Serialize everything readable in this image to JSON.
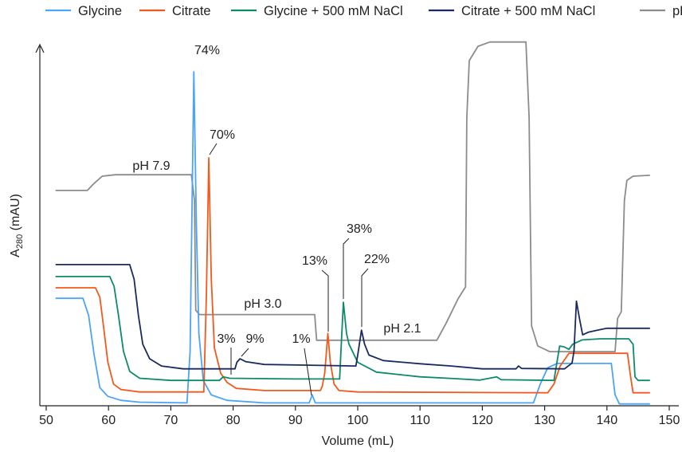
{
  "chart_data": {
    "type": "line",
    "title": "",
    "xlabel": "Volume (mL)",
    "ylabel_main": "A",
    "ylabel_sub": "280",
    "ylabel_unit": " (mAU)",
    "xlim": [
      50,
      150
    ],
    "x_ticks": [
      "50",
      "60",
      "70",
      "80",
      "90",
      "100",
      "110",
      "120",
      "130",
      "140",
      "150"
    ],
    "y_axis_ticks": "none",
    "y_units_note": "A280 shown on relative scale (no tick labels printed)",
    "ylim_relative": [
      0,
      100
    ],
    "ph_range": [
      0,
      12.6
    ],
    "grid": false,
    "legend_placement": "top",
    "series": [
      {
        "name": "Glycine",
        "color": "#4da3f5",
        "axis": "A280",
        "points": [
          [
            51.5,
            29.7
          ],
          [
            55.9,
            29.7
          ],
          [
            56.8,
            25
          ],
          [
            57.7,
            14
          ],
          [
            58.6,
            5
          ],
          [
            59.9,
            2.6
          ],
          [
            62,
            1.5
          ],
          [
            65,
            1
          ],
          [
            72.6,
            0.8
          ],
          [
            73.1,
            15
          ],
          [
            73.7,
            92.3
          ],
          [
            74.1,
            50
          ],
          [
            74.5,
            20
          ],
          [
            75.2,
            7
          ],
          [
            76.5,
            3
          ],
          [
            79,
            1.5
          ],
          [
            85,
            0.8
          ],
          [
            92.2,
            0.8
          ],
          [
            92.7,
            3
          ],
          [
            93.2,
            0.8
          ],
          [
            128.2,
            0.8
          ],
          [
            129.3,
            6
          ],
          [
            130.5,
            10.5
          ],
          [
            132,
            11.7
          ],
          [
            140.7,
            11.7
          ],
          [
            141.3,
            3
          ],
          [
            142,
            0.5
          ],
          [
            146.9,
            0.5
          ]
        ]
      },
      {
        "name": "Citrate",
        "color": "#f25a1d",
        "axis": "A280",
        "points": [
          [
            51.5,
            32.6
          ],
          [
            57.9,
            32.6
          ],
          [
            58.6,
            30
          ],
          [
            59.2,
            22
          ],
          [
            59.9,
            12
          ],
          [
            60.8,
            6
          ],
          [
            62,
            4.5
          ],
          [
            65,
            3.8
          ],
          [
            75.3,
            3.8
          ],
          [
            75.7,
            30
          ],
          [
            76.1,
            68.5
          ],
          [
            76.5,
            35
          ],
          [
            77,
            16
          ],
          [
            78,
            9
          ],
          [
            79,
            6.5
          ],
          [
            80.5,
            4.8
          ],
          [
            85,
            4.2
          ],
          [
            94,
            4.2
          ],
          [
            94.3,
            5.3
          ],
          [
            94.7,
            9
          ],
          [
            95.2,
            20
          ],
          [
            95.6,
            12
          ],
          [
            96.2,
            6
          ],
          [
            97,
            4.2
          ],
          [
            100,
            3.8
          ],
          [
            130.5,
            3.6
          ],
          [
            131.5,
            6
          ],
          [
            132.5,
            11
          ],
          [
            133.9,
            14.5
          ],
          [
            143.3,
            14.5
          ],
          [
            143.8,
            8
          ],
          [
            144.2,
            3.6
          ],
          [
            146.9,
            3.6
          ]
        ]
      },
      {
        "name": "Glycine + 500 mM NaCl",
        "color": "#0e8a6a",
        "axis": "A280",
        "points": [
          [
            51.5,
            35.7
          ],
          [
            60.2,
            35.7
          ],
          [
            60.9,
            33
          ],
          [
            61.6,
            25
          ],
          [
            62.4,
            15
          ],
          [
            63.4,
            9.5
          ],
          [
            65,
            7.6
          ],
          [
            70,
            7
          ],
          [
            77.8,
            7
          ],
          [
            78.4,
            8
          ],
          [
            79.5,
            7.6
          ],
          [
            90,
            7.4
          ],
          [
            97.1,
            7.4
          ],
          [
            97.3,
            15
          ],
          [
            97.7,
            28.6
          ],
          [
            98.2,
            20
          ],
          [
            98.6,
            17
          ],
          [
            100,
            12
          ],
          [
            103,
            9.3
          ],
          [
            110,
            8
          ],
          [
            115.4,
            7.5
          ],
          [
            119.6,
            7.1
          ],
          [
            122.3,
            8
          ],
          [
            123,
            7.2
          ],
          [
            131.5,
            7
          ],
          [
            132.4,
            16.5
          ],
          [
            133.1,
            16.3
          ],
          [
            133.9,
            15.6
          ],
          [
            134.5,
            17
          ],
          [
            136,
            18.2
          ],
          [
            139,
            18.5
          ],
          [
            143.5,
            18.5
          ],
          [
            144.2,
            17
          ],
          [
            144.5,
            8
          ],
          [
            145,
            7
          ],
          [
            146.9,
            7
          ]
        ]
      },
      {
        "name": "Citrate + 500 mM NaCl",
        "color": "#1b2a5e",
        "axis": "A280",
        "points": [
          [
            51.5,
            39
          ],
          [
            63.4,
            39
          ],
          [
            64.1,
            35
          ],
          [
            64.8,
            25
          ],
          [
            65.5,
            17
          ],
          [
            66.6,
            13
          ],
          [
            68.5,
            11
          ],
          [
            72,
            10.2
          ],
          [
            80.3,
            10.2
          ],
          [
            80.6,
            12
          ],
          [
            81.1,
            13
          ],
          [
            82,
            12.2
          ],
          [
            85,
            11.4
          ],
          [
            99.7,
            11
          ],
          [
            100,
            14
          ],
          [
            100.6,
            20.9
          ],
          [
            101.1,
            17
          ],
          [
            101.8,
            14
          ],
          [
            104.1,
            12.5
          ],
          [
            110,
            11.6
          ],
          [
            115,
            11
          ],
          [
            120,
            10.2
          ],
          [
            125.4,
            10.2
          ],
          [
            125.8,
            11
          ],
          [
            126.3,
            10.3
          ],
          [
            133.2,
            10.2
          ],
          [
            134.4,
            11.8
          ],
          [
            134.7,
            15
          ],
          [
            135.1,
            28.9
          ],
          [
            135.6,
            24
          ],
          [
            136.1,
            19.6
          ],
          [
            137,
            20.3
          ],
          [
            138.5,
            20.9
          ],
          [
            140,
            21.4
          ],
          [
            146.9,
            21.4
          ]
        ]
      },
      {
        "name": "pH",
        "color": "#8c8c8c",
        "axis": "pH",
        "points": [
          [
            51.5,
            7.35
          ],
          [
            56.6,
            7.35
          ],
          [
            57.7,
            7.6
          ],
          [
            59,
            7.85
          ],
          [
            61.1,
            7.9
          ],
          [
            73.3,
            7.9
          ],
          [
            73.8,
            7.0
          ],
          [
            74,
            3.15
          ],
          [
            74.6,
            3.0
          ],
          [
            93.1,
            3.0
          ],
          [
            93.4,
            2.1
          ],
          [
            112.7,
            2.1
          ],
          [
            114.2,
            2.7
          ],
          [
            116.1,
            3.55
          ],
          [
            117.3,
            3.97
          ],
          [
            117.5,
            9.9
          ],
          [
            117.9,
            11.9
          ],
          [
            119.3,
            12.4
          ],
          [
            121.2,
            12.55
          ],
          [
            127,
            12.55
          ],
          [
            127.5,
            9.9
          ],
          [
            127.9,
            2.6
          ],
          [
            128.9,
            1.9
          ],
          [
            130.8,
            1.7
          ],
          [
            141.3,
            1.7
          ],
          [
            141.7,
            2.86
          ],
          [
            142.3,
            3.1
          ],
          [
            142.8,
            7.0
          ],
          [
            143.2,
            7.7
          ],
          [
            144.2,
            7.85
          ],
          [
            146.9,
            7.88
          ]
        ]
      }
    ],
    "annotations": [
      {
        "text": "74%"
      },
      {
        "text": "70%"
      },
      {
        "text": "3%"
      },
      {
        "text": "9%"
      },
      {
        "text": "1%"
      },
      {
        "text": "13%"
      },
      {
        "text": "38%"
      },
      {
        "text": "22%"
      },
      {
        "text": "pH 7.9"
      },
      {
        "text": "pH 3.0"
      },
      {
        "text": "pH 2.1"
      }
    ]
  }
}
